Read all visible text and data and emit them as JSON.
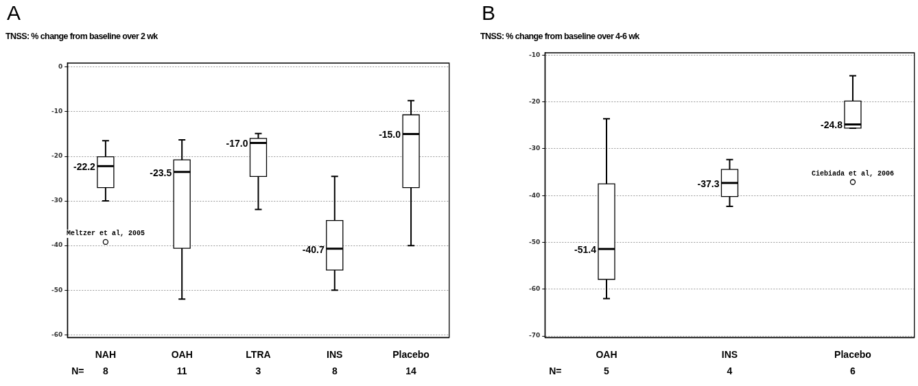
{
  "chart_data": [
    {
      "type": "box",
      "title": "A",
      "subtitle": "TNSS: % change from baseline over 2 wk",
      "categories": [
        "NAH",
        "OAH",
        "LTRA",
        "INS",
        "Placebo"
      ],
      "boxes": [
        {
          "low": -30,
          "q1": -27,
          "median": -22.2,
          "q3": -20.1,
          "high": -16.5,
          "outliers": [
            -39.2
          ]
        },
        {
          "low": -52,
          "q1": -40.6,
          "median": -23.5,
          "q3": -20.8,
          "high": -16.3
        },
        {
          "low": -31.9,
          "q1": -24.5,
          "median": -17.0,
          "q3": -16.0,
          "high": -14.9
        },
        {
          "low": -50,
          "q1": -45.5,
          "median": -40.7,
          "q3": -34.4,
          "high": -24.5
        },
        {
          "low": -40,
          "q1": -27,
          "median": -15.0,
          "q3": -10.7,
          "high": -7.5
        }
      ],
      "value_labels": [
        "-22.2",
        "-23.5",
        "-17.0",
        "-40.7",
        "-15.0"
      ],
      "ylim": [
        -60.6,
        0.9
      ],
      "yticks": [
        0,
        -10,
        -20,
        -30,
        -40,
        -50,
        -60
      ],
      "grid": "y",
      "legend": false,
      "marker": "circle",
      "annotations": [
        "Meltzer et al, 2005",
        "N=",
        "8",
        "11",
        "3",
        "8",
        "14"
      ]
    },
    {
      "type": "box",
      "title": "B",
      "subtitle": "TNSS: % change from baseline over 4-6 wk",
      "categories": [
        "OAH",
        "INS",
        "Placebo"
      ],
      "boxes": [
        {
          "low": -62,
          "q1": -57.9,
          "median": -51.4,
          "q3": -37.5,
          "high": -23.6
        },
        {
          "low": -42.3,
          "q1": -40.2,
          "median": -37.3,
          "q3": -34.4,
          "high": -32.3
        },
        {
          "low": -25.6,
          "q1": -25.6,
          "median": -24.8,
          "q3": -19.8,
          "high": -14.4,
          "outliers": [
            -37.1
          ]
        }
      ],
      "value_labels": [
        "-51.4",
        "-37.3",
        "-24.8"
      ],
      "ylim": [
        -70.3,
        -9.5
      ],
      "yticks": [
        -10,
        -20,
        -30,
        -40,
        -50,
        -60,
        -70
      ],
      "grid": "y",
      "legend": false,
      "marker": "circle",
      "annotations": [
        "Ciebiada et al, 2006",
        "N=",
        "5",
        "4",
        "6"
      ]
    }
  ]
}
